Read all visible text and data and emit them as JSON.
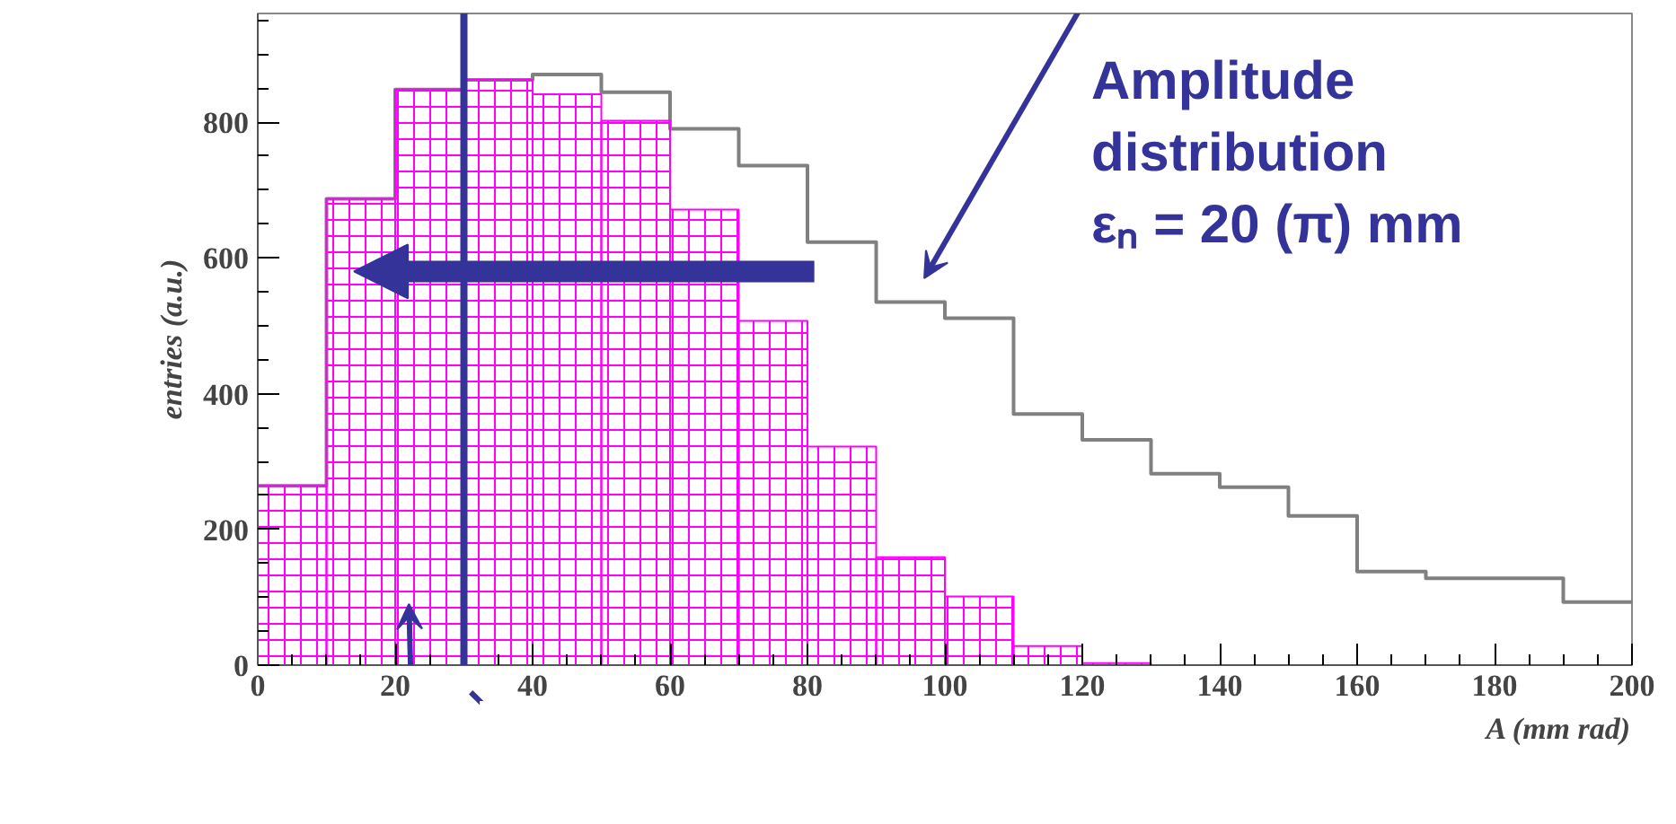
{
  "chart_data": {
    "type": "histogram",
    "xlabel": "A (mm rad)",
    "ylabel": "entries (a.u.)",
    "bins": [
      0,
      10,
      20,
      30,
      40,
      50,
      60,
      70,
      80,
      90,
      100,
      110,
      120,
      130,
      140,
      150,
      160,
      170,
      180,
      190,
      200
    ],
    "series": [
      {
        "color": "#808080",
        "values": [
          264,
          687,
          848,
          862,
          870,
          844,
          790,
          736,
          623,
          535,
          511,
          370,
          332,
          282,
          262,
          220,
          138,
          128,
          128,
          93
        ]
      },
      {
        "color": "#ff00ff",
        "values": [
          264,
          687,
          848,
          862,
          841,
          802,
          671,
          507,
          322,
          159,
          101,
          28,
          3,
          0,
          0,
          0,
          0,
          0,
          0,
          0
        ]
      }
    ],
    "xlim": [
      0,
      200
    ],
    "ylim": [
      0,
      960
    ],
    "xticks": [
      0,
      20,
      40,
      60,
      80,
      100,
      120,
      140,
      160,
      180,
      200
    ],
    "yticks": [
      0,
      200,
      400,
      600,
      800
    ],
    "ref_lines": [
      {
        "axis": "x",
        "value": 30,
        "color": "#333399"
      }
    ],
    "annotations": [
      "Amplitude",
      "distribution",
      "εₙ =  20 (π) mm"
    ],
    "grid": false
  }
}
